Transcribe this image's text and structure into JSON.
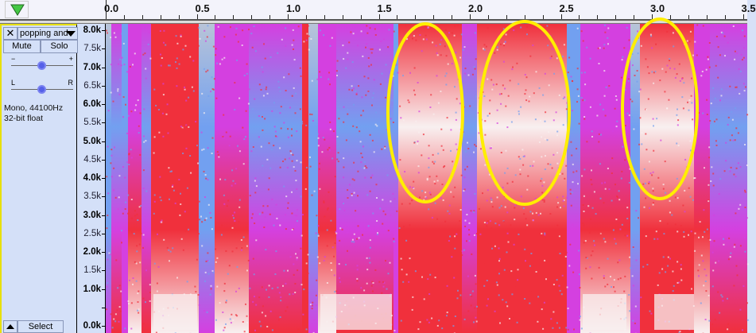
{
  "ruler": {
    "labels": [
      "0.0",
      "0.5",
      "1.0",
      "1.5",
      "2.0",
      "2.5",
      "3.0",
      "3.5"
    ]
  },
  "track": {
    "name": "popping and",
    "close_label": "✕",
    "mute_label": "Mute",
    "solo_label": "Solo",
    "gain": {
      "min_label": "−",
      "max_label": "+",
      "value": 0.5
    },
    "pan": {
      "left_label": "L",
      "right_label": "R",
      "value": 0.5
    },
    "info_line1": "Mono, 44100Hz",
    "info_line2": "32-bit float",
    "select_label": "Select"
  },
  "yaxis": {
    "labels": [
      "8.0k",
      "7.5k",
      "7.0k",
      "6.5k",
      "6.0k",
      "5.5k",
      "5.0k",
      "4.5k",
      "4.0k",
      "3.5k",
      "3.0k",
      "2.5k",
      "2.0k",
      "1.5k",
      "1.0k",
      "",
      "0.0k"
    ]
  },
  "annotations": {
    "color": "#ffee00",
    "count": 3
  },
  "colors": {
    "red": "#f0303c",
    "magenta": "#d440e0",
    "blue": "#72a0f0",
    "gray": "#b8c4d8",
    "white": "#f8f0f0",
    "play": "#44c844"
  }
}
